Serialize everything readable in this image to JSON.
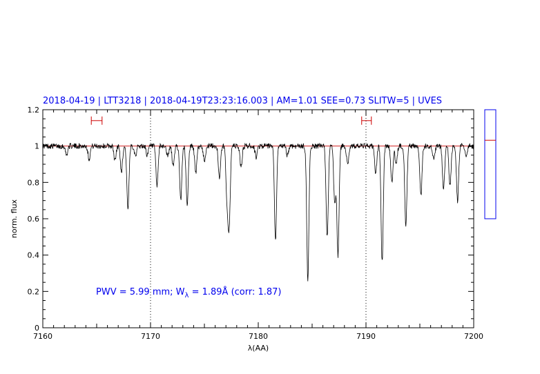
{
  "chart_data": {
    "type": "line",
    "title": "2018-04-19 | LTT3218 | 2018-04-19T23:23:16.003 | AM=1.01 SEE=0.73 SLITW=5 | UVES",
    "xlabel": "λ(AA)",
    "ylabel": "norm. flux",
    "xlim": [
      7160,
      7200
    ],
    "ylim": [
      0,
      1.2
    ],
    "x_ticks": [
      7160,
      7170,
      7180,
      7190,
      7200
    ],
    "x_tick_labels": [
      "7160",
      "7170",
      "7180",
      "7190",
      "7200"
    ],
    "y_ticks": [
      0,
      0.2,
      0.4,
      0.6,
      0.8,
      1,
      1.2
    ],
    "y_tick_labels": [
      "0",
      "0.2",
      "0.4",
      "0.6",
      "0.8",
      "1",
      "1.2"
    ],
    "grid": false,
    "continuum_level": 1.0,
    "vertical_markers": [
      7170,
      7190
    ],
    "range_markers": [
      {
        "x_start": 7164.5,
        "x_end": 7165.5,
        "y": 1.14
      },
      {
        "x_start": 7189.6,
        "x_end": 7190.5,
        "y": 1.14
      }
    ],
    "annotation": {
      "prefix": "PWV = 5.99 mm; W",
      "sub": "λ",
      "suffix": " = 1.89Å (corr: 1.87)"
    },
    "series": [
      {
        "color": "#000000",
        "continuum": 1.0,
        "absorption_lines": [
          {
            "x": 7162.2,
            "depth": 0.05
          },
          {
            "x": 7164.3,
            "depth": 0.07
          },
          {
            "x": 7166.7,
            "depth": 0.08
          },
          {
            "x": 7167.3,
            "depth": 0.14
          },
          {
            "x": 7167.9,
            "depth": 0.35
          },
          {
            "x": 7168.6,
            "depth": 0.05
          },
          {
            "x": 7169.7,
            "depth": 0.05
          },
          {
            "x": 7170.6,
            "depth": 0.22
          },
          {
            "x": 7171.6,
            "depth": 0.06
          },
          {
            "x": 7172.1,
            "depth": 0.11
          },
          {
            "x": 7172.8,
            "depth": 0.3
          },
          {
            "x": 7173.4,
            "depth": 0.32
          },
          {
            "x": 7174.2,
            "depth": 0.15
          },
          {
            "x": 7175.0,
            "depth": 0.08
          },
          {
            "x": 7176.4,
            "depth": 0.18
          },
          {
            "x": 7177.1,
            "depth": 0.28
          },
          {
            "x": 7177.3,
            "depth": 0.43
          },
          {
            "x": 7178.4,
            "depth": 0.12
          },
          {
            "x": 7179.8,
            "depth": 0.06
          },
          {
            "x": 7181.6,
            "depth": 0.52
          },
          {
            "x": 7182.7,
            "depth": 0.05
          },
          {
            "x": 7184.6,
            "depth": 0.73
          },
          {
            "x": 7186.4,
            "depth": 0.5
          },
          {
            "x": 7187.1,
            "depth": 0.32
          },
          {
            "x": 7187.4,
            "depth": 0.6
          },
          {
            "x": 7188.3,
            "depth": 0.1
          },
          {
            "x": 7190.9,
            "depth": 0.15
          },
          {
            "x": 7191.5,
            "depth": 0.64
          },
          {
            "x": 7192.4,
            "depth": 0.2
          },
          {
            "x": 7192.8,
            "depth": 0.1
          },
          {
            "x": 7193.7,
            "depth": 0.44
          },
          {
            "x": 7195.1,
            "depth": 0.27
          },
          {
            "x": 7196.3,
            "depth": 0.08
          },
          {
            "x": 7197.2,
            "depth": 0.24
          },
          {
            "x": 7197.8,
            "depth": 0.22
          },
          {
            "x": 7198.5,
            "depth": 0.3
          },
          {
            "x": 7199.3,
            "depth": 0.05
          }
        ]
      }
    ],
    "side_panel": {
      "level": 0.72,
      "color": "#0000ee",
      "marker_color": "#cc0000"
    }
  }
}
